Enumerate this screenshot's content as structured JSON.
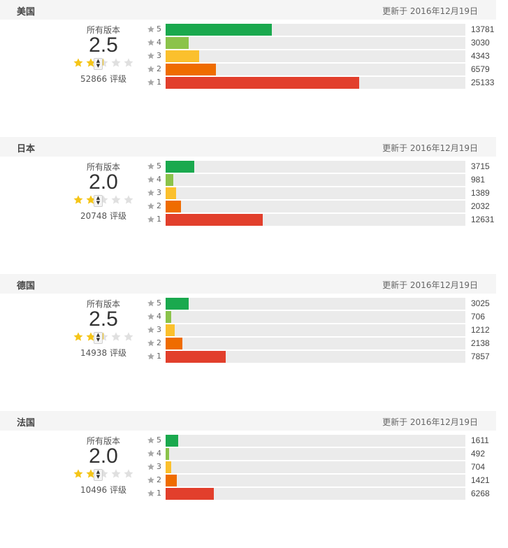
{
  "colors": {
    "5": "#1aa94e",
    "4": "#8bc34a",
    "3": "#fbc02d",
    "2": "#ef6c00",
    "1": "#e23f2c",
    "star_on": "#f5c518",
    "star_off": "#e0e0e0",
    "row_star": "#a8a8a8"
  },
  "labels": {
    "all_versions": "所有版本",
    "ratings_suffix": "评级"
  },
  "chart_data": [
    {
      "type": "bar",
      "orientation": "horizontal",
      "title": "美国",
      "updated": "更新于 2016年12月19日",
      "average": "2.5",
      "average_value": 2.5,
      "total": "52866",
      "ratings_text": "52866 评级",
      "categories": [
        "5",
        "4",
        "3",
        "2",
        "1"
      ],
      "values": [
        13781,
        3030,
        4343,
        6579,
        25133
      ]
    },
    {
      "type": "bar",
      "orientation": "horizontal",
      "title": "日本",
      "updated": "更新于 2016年12月19日",
      "average": "2.0",
      "average_value": 2.0,
      "total": "20748",
      "ratings_text": "20748 评级",
      "categories": [
        "5",
        "4",
        "3",
        "2",
        "1"
      ],
      "values": [
        3715,
        981,
        1389,
        2032,
        12631
      ]
    },
    {
      "type": "bar",
      "orientation": "horizontal",
      "title": "德国",
      "updated": "更新于 2016年12月19日",
      "average": "2.5",
      "average_value": 2.5,
      "total": "14938",
      "ratings_text": "14938 评级",
      "categories": [
        "5",
        "4",
        "3",
        "2",
        "1"
      ],
      "values": [
        3025,
        706,
        1212,
        2138,
        7857
      ]
    },
    {
      "type": "bar",
      "orientation": "horizontal",
      "title": "法国",
      "updated": "更新于 2016年12月19日",
      "average": "2.0",
      "average_value": 2.0,
      "total": "10496",
      "ratings_text": "10496 评级",
      "categories": [
        "5",
        "4",
        "3",
        "2",
        "1"
      ],
      "values": [
        1611,
        492,
        704,
        1421,
        6268
      ]
    }
  ]
}
